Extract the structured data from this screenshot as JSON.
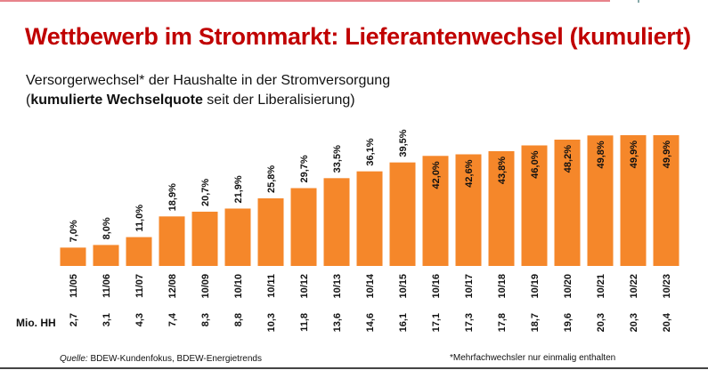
{
  "title": "Wettbewerb im Strommarkt: Lieferantenwechsel (kumuliert)",
  "subtitle_line1": "Versorgerwechsel* der Haushalte in der Stromversorgung",
  "subtitle_line2_open": "(",
  "subtitle_line2_bold": "kumulierte Wechselquote",
  "subtitle_line2_rest": " seit der Liberalisierung)",
  "source_label": "Quelle:",
  "source_text": " BDEW-Kundenfokus, BDEW-Energietrends",
  "footnote": "*Mehrfachwechsler nur einmalig enthalten",
  "chart_data": {
    "type": "bar",
    "bar_color": "#f5872a",
    "categories": [
      "11/05",
      "11/06",
      "11/07",
      "12/08",
      "10/09",
      "10/10",
      "10/11",
      "10/12",
      "10/13",
      "10/14",
      "10/15",
      "10/16",
      "10/17",
      "10/18",
      "10/19",
      "10/20",
      "10/21",
      "10/22",
      "10/23"
    ],
    "values": [
      7.0,
      8.0,
      11.0,
      18.9,
      20.7,
      21.9,
      25.8,
      29.7,
      33.5,
      36.1,
      39.5,
      42.0,
      42.6,
      43.8,
      46.0,
      48.2,
      49.8,
      49.9,
      49.9
    ],
    "value_labels": [
      "7,0%",
      "8,0%",
      "11,0%",
      "18,9%",
      "20,7%",
      "21,9%",
      "25,8%",
      "29,7%",
      "33,5%",
      "36,1%",
      "39,5%",
      "42,0%",
      "42,6%",
      "43,8%",
      "46,0%",
      "48,2%",
      "49,8%",
      "49,9%",
      "49,9%"
    ],
    "row_label": "Mio. HH",
    "households": [
      "2,7",
      "3,1",
      "4,3",
      "7,4",
      "8,3",
      "8,8",
      "10,3",
      "11,8",
      "13,6",
      "14,6",
      "16,1",
      "17,1",
      "17,3",
      "17,8",
      "18,7",
      "19,6",
      "20,3",
      "20,3",
      "20,4"
    ],
    "ylim": [
      0,
      50
    ],
    "grid": false
  }
}
